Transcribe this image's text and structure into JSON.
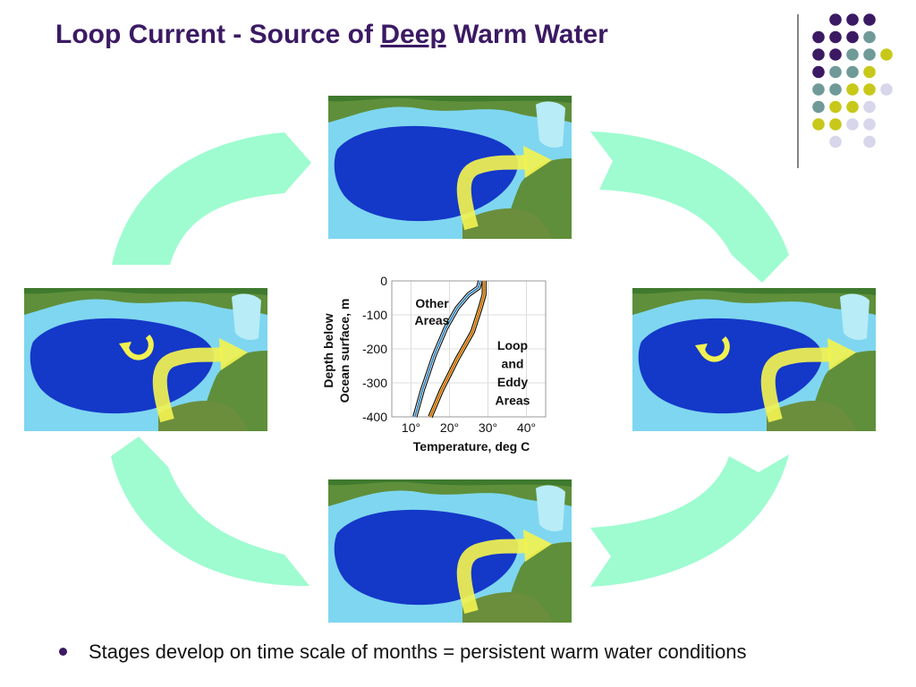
{
  "slide": {
    "title_prefix": "Loop Current - Source of ",
    "title_underlined": "Deep",
    "title_suffix": " Warm Water",
    "bullet": "Stages develop on time scale of months = persistent warm water conditions"
  },
  "colors": {
    "title": "#3b1a63",
    "cycle_arrow": "#9efcd0",
    "current_arrow": "#f2f250",
    "deep_water": "#1438c8",
    "shallow_water": "#7fd6f0",
    "land": "#5f8f3a",
    "other_areas_line": "#1a7fc0",
    "loop_eddy_line": "#e05a10",
    "dots": [
      "#3b1a63",
      "#6f9a98",
      "#c8c81a",
      "#d8d6ea"
    ]
  },
  "maps": [
    {
      "stage": "loop-extended",
      "eddy": false
    },
    {
      "stage": "loop-with-shed-eddy-west",
      "eddy": true
    },
    {
      "stage": "loop-extended",
      "eddy": false
    },
    {
      "stage": "loop-with-shed-eddy",
      "eddy": true
    }
  ],
  "chart_data": {
    "type": "line",
    "xlabel": "Temperature, deg C",
    "ylabel_line1": "Depth below",
    "ylabel_line2": "Ocean surface, m",
    "x_ticks": [
      "10°",
      "20°",
      "30°",
      "40°"
    ],
    "y_ticks": [
      "0",
      "-100",
      "-200",
      "-300",
      "-400"
    ],
    "xlim": [
      5,
      45
    ],
    "ylim": [
      -400,
      0
    ],
    "grid": true,
    "series": [
      {
        "name": "Other Areas",
        "label_lines": [
          "Other",
          "Areas"
        ],
        "color": "#1a7fc0",
        "points": [
          [
            28,
            0
          ],
          [
            27.5,
            -20
          ],
          [
            25,
            -40
          ],
          [
            22,
            -80
          ],
          [
            19,
            -140
          ],
          [
            16,
            -220
          ],
          [
            13,
            -320
          ],
          [
            11,
            -400
          ]
        ]
      },
      {
        "name": "Loop and Eddy Areas",
        "label_lines": [
          "Loop",
          "and",
          "Eddy",
          "Areas"
        ],
        "color": "#e05a10",
        "points": [
          [
            29,
            0
          ],
          [
            29,
            -40
          ],
          [
            28,
            -80
          ],
          [
            26,
            -150
          ],
          [
            22,
            -230
          ],
          [
            18,
            -320
          ],
          [
            15,
            -400
          ]
        ]
      }
    ]
  }
}
